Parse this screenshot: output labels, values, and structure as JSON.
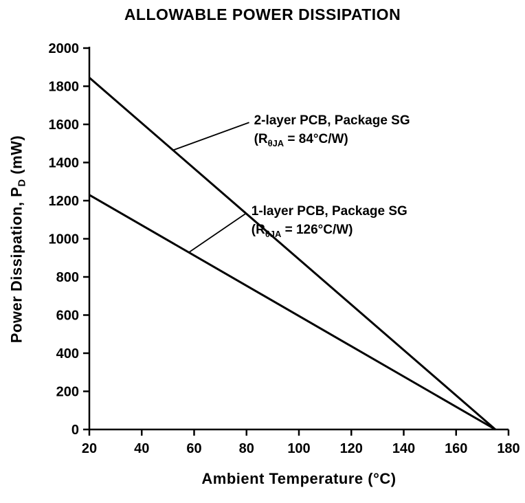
{
  "title": "ALLOWABLE POWER DISSIPATION",
  "colors": {
    "line": "#000000",
    "text": "#000000",
    "background": "#ffffff"
  },
  "chart_data": {
    "type": "line",
    "title": "ALLOWABLE POWER DISSIPATION",
    "xlabel": "Ambient Temperature (°C)",
    "ylabel": "Power Dissipation, P_D (mW)",
    "ylabel_segments": [
      {
        "t": "Power Dissipation, P"
      },
      {
        "t": "D",
        "sub": true
      },
      {
        "t": " (mW)"
      }
    ],
    "xlim": [
      20,
      180
    ],
    "ylim": [
      0,
      2000
    ],
    "xticks": [
      20,
      40,
      60,
      80,
      100,
      120,
      140,
      160,
      180
    ],
    "yticks": [
      0,
      200,
      400,
      600,
      800,
      1000,
      1200,
      1400,
      1600,
      1800,
      2000
    ],
    "grid": false,
    "legend_position": "none",
    "series": [
      {
        "name": "2-layer PCB, Package SG (RθJA = 84°C/W)",
        "x": [
          20,
          175
        ],
        "y": [
          1845,
          0
        ]
      },
      {
        "name": "1-layer PCB, Package SG (RθJA = 126°C/W)",
        "x": [
          20,
          175
        ],
        "y": [
          1230,
          0
        ]
      }
    ],
    "annotations": [
      {
        "series": 0,
        "text_lines": [
          [
            {
              "t": "2-layer PCB, Package SG"
            }
          ],
          [
            {
              "t": "(R"
            },
            {
              "t": "θJA",
              "sub": true
            },
            {
              "t": " = 84°C/W)"
            }
          ]
        ],
        "anchor": {
          "t": 52,
          "p": 1465
        },
        "label_pos": {
          "t": 81,
          "p": 1610
        }
      },
      {
        "series": 1,
        "text_lines": [
          [
            {
              "t": "1-layer PCB, Package SG"
            }
          ],
          [
            {
              "t": "(R"
            },
            {
              "t": "θJA",
              "sub": true
            },
            {
              "t": " = 126°C/W)"
            }
          ]
        ],
        "anchor": {
          "t": 58,
          "p": 929
        },
        "label_pos": {
          "t": 80,
          "p": 1135
        }
      }
    ]
  }
}
